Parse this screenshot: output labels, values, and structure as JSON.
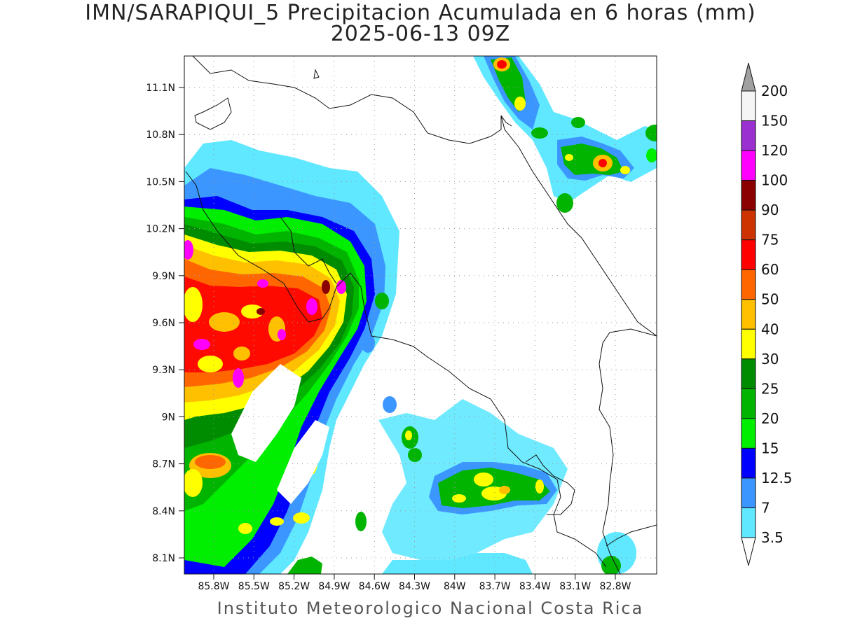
{
  "title": "IMN/SARAPIQUI_5 Precipitacion Acumulada en 6 horas (mm)",
  "subtitle": "2025-06-13 09Z",
  "footer": "Instituto Meteorologico Nacional Costa Rica",
  "lat_ticks": [
    "11.1N",
    "10.8N",
    "10.5N",
    "10.2N",
    "9.9N",
    "9.6N",
    "9.3N",
    "9N",
    "8.7N",
    "8.4N",
    "8.1N"
  ],
  "lon_ticks": [
    "85.8W",
    "85.5W",
    "85.2W",
    "84.9W",
    "84.6W",
    "84.3W",
    "84W",
    "83.7W",
    "83.4W",
    "83.1W",
    "82.8W"
  ],
  "colorbar": {
    "labels": [
      "200",
      "150",
      "120",
      "100",
      "90",
      "75",
      "60",
      "50",
      "40",
      "30",
      "25",
      "20",
      "15",
      "12.5",
      "7",
      "3.5"
    ],
    "colors": [
      "#f5f5f5",
      "#9b30d0",
      "#ff00ff",
      "#8b0000",
      "#cc3300",
      "#ff0000",
      "#ff6600",
      "#ffc000",
      "#ffff00",
      "#008c00",
      "#00b400",
      "#00ee00",
      "#0000ff",
      "#3c96ff",
      "#5fe8ff"
    ],
    "over_color": "#a0a0a0"
  }
}
